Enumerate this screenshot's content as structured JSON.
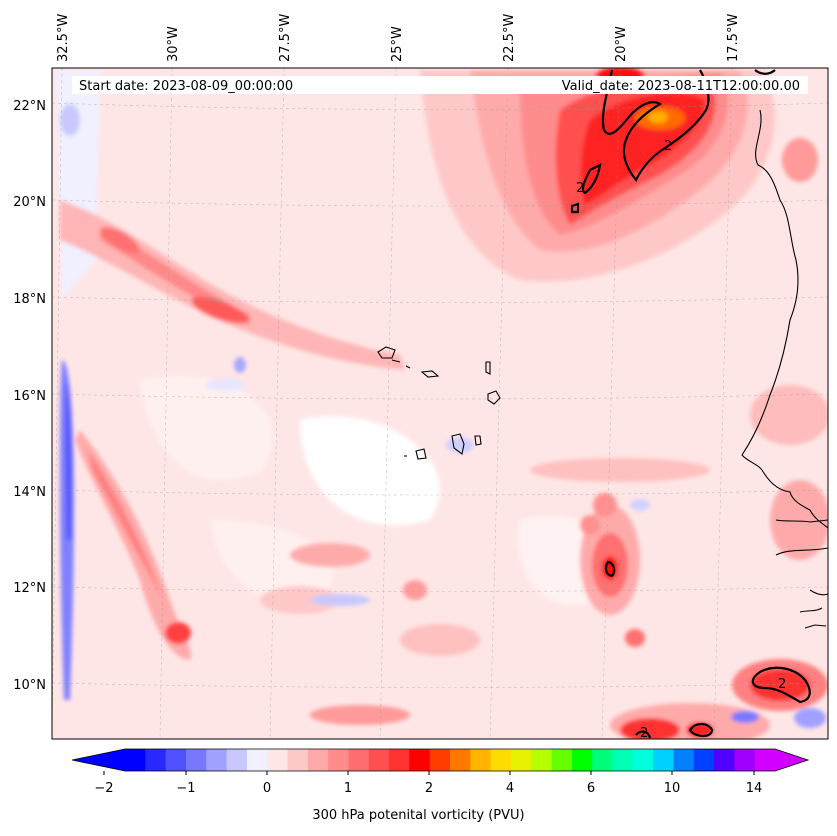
{
  "map": {
    "start_label": "Start date: 2023-08-09_00:00:00",
    "valid_label": "Valid_date: 2023-08-11T12:00:00.00",
    "lon_labels": [
      "32.5°W",
      "30°W",
      "27.5°W",
      "25°W",
      "22.5°W",
      "20°W",
      "17.5°W"
    ],
    "lat_labels": [
      "22°N",
      "20°N",
      "18°N",
      "16°N",
      "14°N",
      "12°N",
      "10°N"
    ],
    "contour_label": "2",
    "colors": {
      "background": "#ffe6e6",
      "coast": "#000000",
      "contour": "#000000"
    }
  },
  "colorbar": {
    "title": "300 hPa potenital vorticity (PVU)",
    "tick_labels": [
      "−2",
      "−1",
      "0",
      "1",
      "2",
      "4",
      "6",
      "10",
      "14"
    ],
    "colors": [
      "#0000ff",
      "#2828ff",
      "#5050ff",
      "#7878ff",
      "#a0a0ff",
      "#c8c8ff",
      "#f0f0ff",
      "#ffe6e6",
      "#ffc8c8",
      "#ffaaaa",
      "#ff8c8c",
      "#ff6e6e",
      "#ff5050",
      "#ff3232",
      "#ff0000",
      "#ff3c00",
      "#ff7800",
      "#ffb400",
      "#ffdc00",
      "#e6f000",
      "#b4ff00",
      "#64ff00",
      "#00ff00",
      "#00ff78",
      "#00ffb4",
      "#00ffdc",
      "#00d2ff",
      "#0080ff",
      "#0040ff",
      "#5000ff",
      "#a000ff",
      "#d200ff"
    ]
  }
}
